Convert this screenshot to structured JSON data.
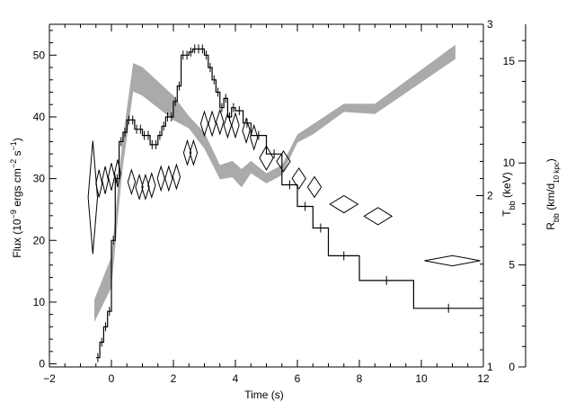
{
  "chart_data": {
    "type": "line",
    "xlabel": "Time (s)",
    "x_ticks": [
      -2,
      0,
      2,
      4,
      6,
      8,
      10,
      12
    ],
    "xlim": [
      -2,
      12
    ],
    "ylabel_left": {
      "base": "Flux (10",
      "sup1": "−9",
      "mid1": " ergs cm",
      "sup2": "−2",
      "mid2": " s",
      "sup3": "−1",
      "end": ")"
    },
    "y_left_ticks": [
      0,
      10,
      20,
      30,
      40,
      50
    ],
    "ylim_left": [
      -0.5,
      55
    ],
    "ylabel_temp": {
      "base": "T",
      "sub": "bb",
      "end": " (keV)"
    },
    "y_temp_ticks": [
      1,
      2,
      3
    ],
    "ylim_temp": [
      1,
      3
    ],
    "ylabel_radius": {
      "base": "R",
      "sub1": "bb",
      "mid": " (km/d",
      "sub2": "10 kpc",
      "end": ")"
    },
    "y_radius_ticks": [
      0,
      5,
      10,
      15
    ],
    "ylim_radius": [
      0,
      16.8
    ],
    "series": [
      {
        "role": "flux",
        "style": "histogram",
        "color": "#000000",
        "points": [
          [
            -0.5,
            1.0
          ],
          [
            -0.375,
            3.5
          ],
          [
            -0.25,
            6.0
          ],
          [
            -0.125,
            8.5
          ],
          [
            0.0,
            20.0
          ],
          [
            0.125,
            30.0
          ],
          [
            0.25,
            36.0
          ],
          [
            0.375,
            37.5
          ],
          [
            0.5,
            39.5
          ],
          [
            0.625,
            39.5
          ],
          [
            0.75,
            38.0
          ],
          [
            0.875,
            38.0
          ],
          [
            1.0,
            37.0
          ],
          [
            1.125,
            37.0
          ],
          [
            1.25,
            35.5
          ],
          [
            1.375,
            35.5
          ],
          [
            1.5,
            37.0
          ],
          [
            1.625,
            38.5
          ],
          [
            1.75,
            40.0
          ],
          [
            1.875,
            40.0
          ],
          [
            2.0,
            42.5
          ],
          [
            2.125,
            45.0
          ],
          [
            2.25,
            50.0
          ],
          [
            2.375,
            50.0
          ],
          [
            2.5,
            50.5
          ],
          [
            2.625,
            51.0
          ],
          [
            2.75,
            51.0
          ],
          [
            2.875,
            51.0
          ],
          [
            3.0,
            50.0
          ],
          [
            3.125,
            48.0
          ],
          [
            3.25,
            46.0
          ],
          [
            3.375,
            44.0
          ],
          [
            3.5,
            41.5
          ],
          [
            3.625,
            43.0
          ],
          [
            3.75,
            40.0
          ],
          [
            3.875,
            41.5
          ],
          [
            4.0,
            41.0
          ],
          [
            4.25,
            39.0
          ],
          [
            4.5,
            37.0
          ],
          [
            5.0,
            34.0
          ],
          [
            5.5,
            29.0
          ],
          [
            6.0,
            25.5
          ],
          [
            6.5,
            22.0
          ],
          [
            7.0,
            17.5
          ],
          [
            8.0,
            13.5
          ],
          [
            9.75,
            9.0
          ]
        ],
        "x_end": 12.0
      },
      {
        "role": "temperature",
        "style": "diamonds",
        "color": "#000000",
        "points": [
          [
            -0.6,
            1.99
          ],
          [
            -0.4,
            2.07
          ],
          [
            -0.2,
            2.09
          ],
          [
            0.0,
            2.11
          ],
          [
            0.2,
            2.13
          ],
          [
            0.65,
            2.08
          ],
          [
            0.9,
            2.05
          ],
          [
            1.1,
            2.05
          ],
          [
            1.3,
            2.06
          ],
          [
            1.6,
            2.1
          ],
          [
            1.85,
            2.1
          ],
          [
            2.1,
            2.11
          ],
          [
            2.45,
            2.25
          ],
          [
            2.65,
            2.25
          ],
          [
            3.0,
            2.42
          ],
          [
            3.25,
            2.42
          ],
          [
            3.5,
            2.43
          ],
          [
            3.75,
            2.41
          ],
          [
            4.0,
            2.41
          ],
          [
            4.35,
            2.38
          ],
          [
            4.6,
            2.34
          ],
          [
            5.0,
            2.22
          ],
          [
            5.55,
            2.2
          ],
          [
            6.05,
            2.1
          ],
          [
            6.55,
            2.05
          ],
          [
            7.5,
            1.95
          ],
          [
            8.6,
            1.88
          ],
          [
            11.0,
            1.62
          ]
        ],
        "widths": [
          0.15,
          0.1,
          0.1,
          0.1,
          0.1,
          0.12,
          0.12,
          0.12,
          0.12,
          0.12,
          0.12,
          0.12,
          0.12,
          0.12,
          0.12,
          0.12,
          0.12,
          0.12,
          0.12,
          0.12,
          0.12,
          0.22,
          0.22,
          0.22,
          0.22,
          0.45,
          0.45,
          0.9
        ],
        "heights": [
          0.33,
          0.08,
          0.08,
          0.08,
          0.08,
          0.07,
          0.07,
          0.07,
          0.07,
          0.07,
          0.07,
          0.07,
          0.07,
          0.07,
          0.07,
          0.07,
          0.07,
          0.07,
          0.07,
          0.07,
          0.07,
          0.07,
          0.06,
          0.06,
          0.06,
          0.05,
          0.05,
          0.03
        ]
      },
      {
        "role": "radius",
        "style": "band",
        "color": "#aaaaaa",
        "x": [
          -0.55,
          0.0,
          0.35,
          0.7,
          1.0,
          1.5,
          2.0,
          2.5,
          3.0,
          3.5,
          3.9,
          4.2,
          4.5,
          5.0,
          5.5,
          6.0,
          6.5,
          7.5,
          8.5,
          11.1
        ],
        "lower": [
          2.2,
          3.9,
          9.6,
          13.5,
          13.3,
          12.7,
          12.1,
          11.7,
          10.7,
          9.2,
          9.3,
          8.8,
          9.5,
          9.0,
          9.4,
          11.0,
          11.4,
          12.5,
          12.4,
          15.1
        ],
        "upper": [
          3.3,
          5.4,
          11.0,
          14.9,
          14.7,
          14.0,
          13.3,
          12.3,
          11.5,
          9.9,
          10.1,
          9.7,
          10.1,
          9.5,
          9.9,
          11.4,
          11.9,
          12.9,
          12.9,
          15.8
        ]
      }
    ]
  }
}
